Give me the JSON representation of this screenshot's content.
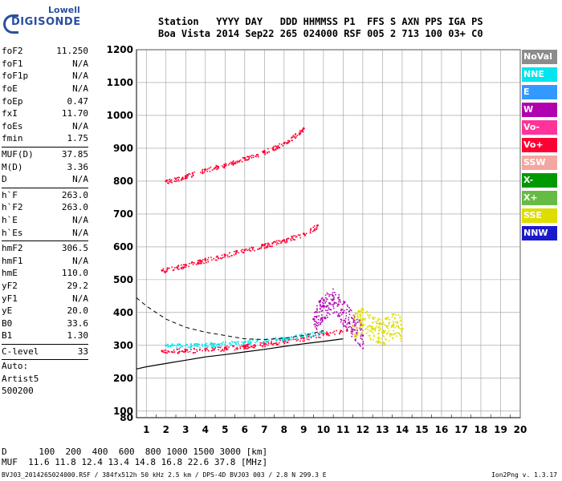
{
  "logo": {
    "line1": "Lowell",
    "line2": "DIGISONDE"
  },
  "header": {
    "line1": "Station   YYYY DAY   DDD HHMMSS P1  FFS S AXN PPS IGA PS",
    "line2": "Boa Vista 2014 Sep22 265 024000 RSF 005 2 713 100 03+ C0"
  },
  "params": [
    {
      "name": "foF2",
      "value": "11.250"
    },
    {
      "name": "foF1",
      "value": "N/A"
    },
    {
      "name": "foF1p",
      "value": "N/A"
    },
    {
      "name": "foE",
      "value": "N/A"
    },
    {
      "name": "foEp",
      "value": "0.47"
    },
    {
      "name": "fxI",
      "value": "11.70"
    },
    {
      "name": "foEs",
      "value": "N/A"
    },
    {
      "name": "fmin",
      "value": "1.75"
    },
    {
      "name": "MUF(D)",
      "value": "37.85"
    },
    {
      "name": "M(D)",
      "value": "3.36"
    },
    {
      "name": "D",
      "value": "N/A"
    },
    {
      "name": "h`F",
      "value": "263.0"
    },
    {
      "name": "h`F2",
      "value": "263.0"
    },
    {
      "name": "h`E",
      "value": "N/A"
    },
    {
      "name": "h`Es",
      "value": "N/A"
    },
    {
      "name": "hmF2",
      "value": "306.5"
    },
    {
      "name": "hmF1",
      "value": "N/A"
    },
    {
      "name": "hmE",
      "value": "110.0"
    },
    {
      "name": "yF2",
      "value": "29.2"
    },
    {
      "name": "yF1",
      "value": "N/A"
    },
    {
      "name": "yE",
      "value": "20.0"
    },
    {
      "name": "B0",
      "value": "33.6"
    },
    {
      "name": "B1",
      "value": "1.30"
    },
    {
      "name": "C-level",
      "value": "33"
    }
  ],
  "autoscaling": {
    "l1": "Auto:",
    "l2": "Artist5",
    "l3": "500200"
  },
  "legend": [
    {
      "label": "NoVal",
      "color": "#8c8c8c"
    },
    {
      "label": "NNE",
      "color": "#00e5ee"
    },
    {
      "label": "E",
      "color": "#3399ff"
    },
    {
      "label": "W",
      "color": "#b000b0"
    },
    {
      "label": "Vo-",
      "color": "#ff3399"
    },
    {
      "label": "Vo+",
      "color": "#ff0033"
    },
    {
      "label": "SSW",
      "color": "#f4a6a0"
    },
    {
      "label": "X-",
      "color": "#009900"
    },
    {
      "label": "X+",
      "color": "#66bb44"
    },
    {
      "label": "SSE",
      "color": "#dddd00"
    },
    {
      "label": "NNW",
      "color": "#1a1acc"
    }
  ],
  "muf_table": {
    "line1": "D      100  200  400  600  800 1000 1500 3000 [km]",
    "line2": "MUF  11.6 11.8 12.4 13.4 14.8 16.8 22.6 37.8 [MHz]"
  },
  "footer": {
    "left": "BVJ03_2014265024000.RSF / 384fx512h 50 kHz 2.5 km / DPS-4D BVJ03 003 / 2.8 N 299.3 E",
    "right": "Ion2Png v. 1.3.17"
  },
  "chart_data": {
    "type": "scatter",
    "title": "",
    "xlabel": "",
    "ylabel": "",
    "xlim": [
      0.5,
      20
    ],
    "ylim": [
      80,
      1200
    ],
    "x_ticks": [
      1,
      2,
      3,
      4,
      5,
      6,
      7,
      8,
      9,
      10,
      11,
      12,
      13,
      14,
      15,
      16,
      17,
      18,
      19,
      20
    ],
    "y_ticks": [
      100,
      200,
      300,
      400,
      500,
      600,
      700,
      800,
      900,
      1000,
      1100,
      1200
    ],
    "y_extra_ticks": [
      80
    ],
    "grid": true,
    "series": [
      {
        "name": "Vo+",
        "color": "#ff0033",
        "kind": "trace",
        "x": [
          1.8,
          3,
          4,
          5,
          6,
          7,
          8,
          9,
          10,
          11.2
        ],
        "y": [
          283,
          285,
          288,
          292,
          298,
          305,
          314,
          322,
          335,
          345
        ]
      },
      {
        "name": "Vo+",
        "color": "#ff0033",
        "kind": "trace",
        "x": [
          1.8,
          3,
          4,
          5,
          6,
          7,
          8,
          9,
          9.7
        ],
        "y": [
          528,
          545,
          560,
          575,
          590,
          605,
          620,
          640,
          665
        ]
      },
      {
        "name": "Vo+",
        "color": "#ff0033",
        "kind": "trace",
        "x": [
          2,
          3,
          4,
          5,
          6,
          7,
          8,
          9
        ],
        "y": [
          800,
          815,
          835,
          850,
          870,
          890,
          915,
          960
        ]
      },
      {
        "name": "W",
        "color": "#b000b0",
        "kind": "cloud",
        "x": [
          9.5,
          10,
          10.5,
          11,
          11.5,
          12
        ],
        "y": [
          380,
          420,
          440,
          400,
          360,
          330
        ]
      },
      {
        "name": "SSE",
        "color": "#dddd00",
        "kind": "cloud",
        "x": [
          11.5,
          12,
          12.5,
          13,
          13.5,
          14
        ],
        "y": [
          360,
          380,
          350,
          340,
          360,
          350
        ]
      },
      {
        "name": "NNE",
        "color": "#00e5ee",
        "kind": "trace",
        "x": [
          2,
          4,
          6,
          8,
          10
        ],
        "y": [
          300,
          302,
          310,
          322,
          340
        ]
      }
    ],
    "profile_curve": {
      "x": [
        0.5,
        1,
        2,
        3,
        4,
        5,
        6,
        7,
        8,
        9,
        10,
        11
      ],
      "y": [
        228,
        235,
        245,
        255,
        265,
        272,
        280,
        288,
        297,
        305,
        312,
        320
      ]
    },
    "dashed_curve": {
      "x": [
        0.5,
        1,
        2,
        3,
        4,
        5,
        6,
        7,
        8,
        9,
        10
      ],
      "y": [
        445,
        420,
        380,
        355,
        340,
        330,
        320,
        318,
        322,
        330,
        345
      ]
    }
  }
}
